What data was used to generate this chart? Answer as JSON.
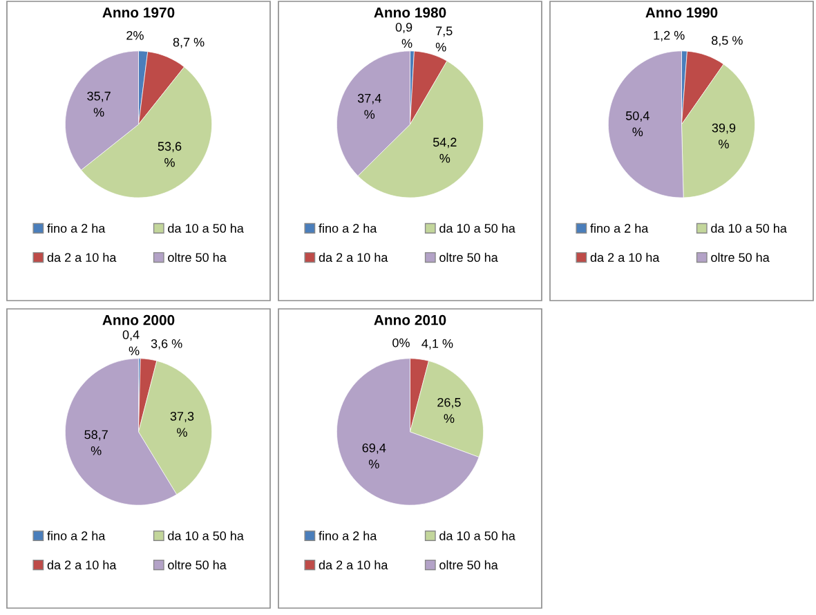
{
  "chart_data": [
    {
      "type": "pie",
      "title": "Anno 1970",
      "categories": [
        "fino a 2 ha",
        "da 2 a 10 ha",
        "da 10 a 50 ha",
        "oltre 50 ha"
      ],
      "values": [
        2,
        8.7,
        53.6,
        35.7
      ],
      "colors": [
        "#4a7ebb",
        "#be4b48",
        "#c3d69b",
        "#b3a2c7"
      ],
      "value_labels": [
        "2%",
        "8,7 %",
        "53,6\n%",
        "35,7\n%"
      ],
      "legend": "bottom"
    },
    {
      "type": "pie",
      "title": "Anno 1980",
      "categories": [
        "fino a 2 ha",
        "da 2 a 10 ha",
        "da 10 a 50 ha",
        "oltre 50 ha"
      ],
      "values": [
        0.9,
        7.5,
        54.2,
        37.4
      ],
      "colors": [
        "#4a7ebb",
        "#be4b48",
        "#c3d69b",
        "#b3a2c7"
      ],
      "value_labels": [
        "0,9\n%",
        "7,5\n%",
        "54,2\n%",
        "37,4\n%"
      ],
      "legend": "bottom"
    },
    {
      "type": "pie",
      "title": "Anno 1990",
      "categories": [
        "fino a 2 ha",
        "da 2 a 10 ha",
        "da 10 a 50 ha",
        "oltre 50 ha"
      ],
      "values": [
        1.2,
        8.5,
        39.9,
        50.4
      ],
      "colors": [
        "#4a7ebb",
        "#be4b48",
        "#c3d69b",
        "#b3a2c7"
      ],
      "value_labels": [
        "1,2 %",
        "8,5 %",
        "39,9\n%",
        "50,4\n%"
      ],
      "legend": "bottom"
    },
    {
      "type": "pie",
      "title": "Anno 2000",
      "categories": [
        "fino a 2 ha",
        "da 2 a 10 ha",
        "da 10 a 50 ha",
        "oltre 50 ha"
      ],
      "values": [
        0.4,
        3.6,
        37.3,
        58.7
      ],
      "colors": [
        "#4a7ebb",
        "#be4b48",
        "#c3d69b",
        "#b3a2c7"
      ],
      "value_labels": [
        "0,4\n%",
        "3,6 %",
        "37,3\n%",
        "58,7\n%"
      ],
      "legend": "bottom"
    },
    {
      "type": "pie",
      "title": "Anno 2010",
      "categories": [
        "fino a 2 ha",
        "da 2 a 10 ha",
        "da 10 a 50 ha",
        "oltre 50 ha"
      ],
      "values": [
        0,
        4.1,
        26.5,
        69.4
      ],
      "colors": [
        "#4a7ebb",
        "#be4b48",
        "#c3d69b",
        "#b3a2c7"
      ],
      "value_labels": [
        "0%",
        "4,1 %",
        "26,5\n%",
        "69,4\n%"
      ],
      "legend": "bottom"
    }
  ]
}
